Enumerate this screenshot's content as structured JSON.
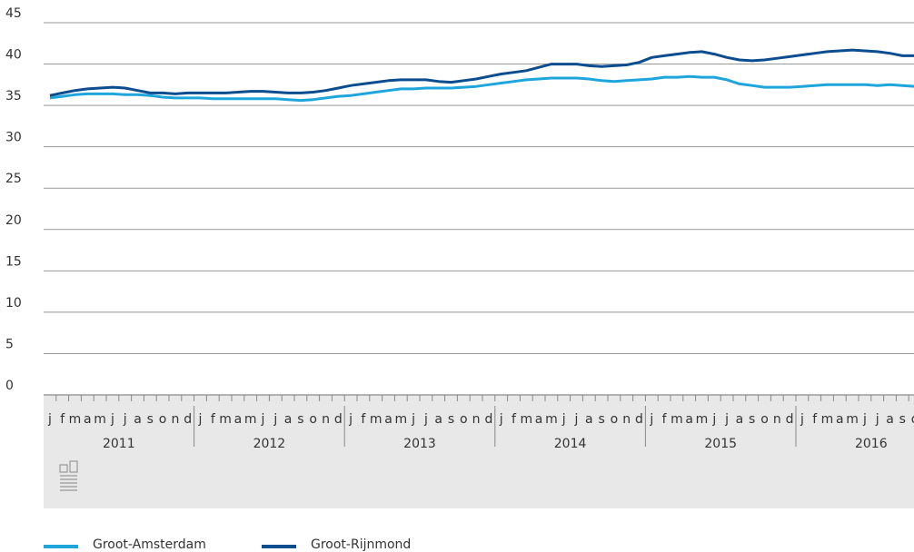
{
  "chart_data": {
    "type": "line",
    "categories": [
      "j",
      "f",
      "m",
      "a",
      "m",
      "j",
      "j",
      "a",
      "s",
      "o",
      "n",
      "d",
      "j",
      "f",
      "m",
      "a",
      "m",
      "j",
      "j",
      "a",
      "s",
      "o",
      "n",
      "d",
      "j",
      "f",
      "m",
      "a",
      "m",
      "j",
      "j",
      "a",
      "s",
      "o",
      "n",
      "d",
      "j",
      "f",
      "m",
      "a",
      "m",
      "j",
      "j",
      "a",
      "s",
      "o",
      "n",
      "d",
      "j",
      "f",
      "m",
      "a",
      "m",
      "j",
      "j",
      "a",
      "s",
      "o",
      "n",
      "d",
      "j",
      "f",
      "m",
      "a",
      "m",
      "j",
      "j",
      "a",
      "s",
      "o"
    ],
    "years": [
      "2011",
      "2012",
      "2013",
      "2014",
      "2015",
      "2016"
    ],
    "series": [
      {
        "name": "Groot-Amsterdam",
        "color": "#1ea6dc",
        "values": [
          35.9,
          36.1,
          36.3,
          36.4,
          36.4,
          36.4,
          36.3,
          36.3,
          36.2,
          36.0,
          35.9,
          35.9,
          35.9,
          35.8,
          35.8,
          35.8,
          35.8,
          35.8,
          35.8,
          35.7,
          35.6,
          35.7,
          35.9,
          36.1,
          36.2,
          36.4,
          36.6,
          36.8,
          37.0,
          37.0,
          37.1,
          37.1,
          37.1,
          37.2,
          37.3,
          37.5,
          37.7,
          37.9,
          38.1,
          38.2,
          38.3,
          38.3,
          38.3,
          38.2,
          38.0,
          37.9,
          38.0,
          38.1,
          38.2,
          38.4,
          38.4,
          38.5,
          38.4,
          38.4,
          38.1,
          37.6,
          37.4,
          37.2,
          37.2,
          37.2,
          37.3,
          37.4,
          37.5,
          37.5,
          37.5,
          37.5,
          37.4,
          37.5,
          37.4,
          37.3
        ]
      },
      {
        "name": "Groot-Rijnmond",
        "color": "#0c4d8f",
        "values": [
          36.2,
          36.5,
          36.8,
          37.0,
          37.1,
          37.2,
          37.1,
          36.8,
          36.5,
          36.5,
          36.4,
          36.5,
          36.5,
          36.5,
          36.5,
          36.6,
          36.7,
          36.7,
          36.6,
          36.5,
          36.5,
          36.6,
          36.8,
          37.1,
          37.4,
          37.6,
          37.8,
          38.0,
          38.1,
          38.1,
          38.1,
          37.9,
          37.8,
          38.0,
          38.2,
          38.5,
          38.8,
          39.0,
          39.2,
          39.6,
          40.0,
          40.0,
          40.0,
          39.8,
          39.7,
          39.8,
          39.9,
          40.2,
          40.8,
          41.0,
          41.2,
          41.4,
          41.5,
          41.2,
          40.8,
          40.5,
          40.4,
          40.5,
          40.7,
          40.9,
          41.1,
          41.3,
          41.5,
          41.6,
          41.7,
          41.6,
          41.5,
          41.3,
          41.0,
          41.0
        ]
      }
    ],
    "ylim": [
      0,
      45
    ],
    "yticks": [
      0,
      5,
      10,
      15,
      20,
      25,
      30,
      35,
      40,
      45
    ],
    "grid": true
  }
}
